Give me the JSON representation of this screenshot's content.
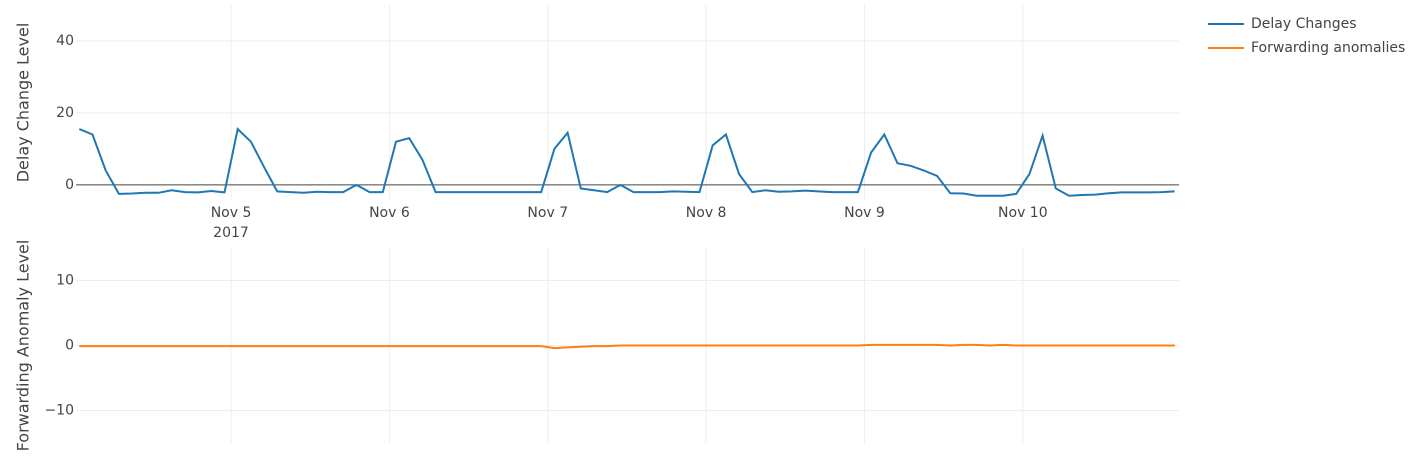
{
  "chart_data": {
    "type": "line",
    "x": [
      "2017-11-04T01:00",
      "2017-11-04T03:00",
      "2017-11-04T05:00",
      "2017-11-04T07:00",
      "2017-11-04T09:00",
      "2017-11-04T11:00",
      "2017-11-04T13:00",
      "2017-11-04T15:00",
      "2017-11-04T17:00",
      "2017-11-04T19:00",
      "2017-11-04T21:00",
      "2017-11-04T23:00",
      "2017-11-05T01:00",
      "2017-11-05T03:00",
      "2017-11-05T05:00",
      "2017-11-05T07:00",
      "2017-11-05T09:00",
      "2017-11-05T11:00",
      "2017-11-05T13:00",
      "2017-11-05T15:00",
      "2017-11-05T17:00",
      "2017-11-05T19:00",
      "2017-11-05T21:00",
      "2017-11-05T23:00",
      "2017-11-06T01:00",
      "2017-11-06T03:00",
      "2017-11-06T05:00",
      "2017-11-06T07:00",
      "2017-11-06T09:00",
      "2017-11-06T11:00",
      "2017-11-06T13:00",
      "2017-11-06T15:00",
      "2017-11-06T17:00",
      "2017-11-06T19:00",
      "2017-11-06T21:00",
      "2017-11-06T23:00",
      "2017-11-07T01:00",
      "2017-11-07T03:00",
      "2017-11-07T05:00",
      "2017-11-07T07:00",
      "2017-11-07T09:00",
      "2017-11-07T11:00",
      "2017-11-07T13:00",
      "2017-11-07T15:00",
      "2017-11-07T17:00",
      "2017-11-07T19:00",
      "2017-11-07T21:00",
      "2017-11-07T23:00",
      "2017-11-08T01:00",
      "2017-11-08T03:00",
      "2017-11-08T05:00",
      "2017-11-08T07:00",
      "2017-11-08T09:00",
      "2017-11-08T11:00",
      "2017-11-08T13:00",
      "2017-11-08T15:00",
      "2017-11-08T17:00",
      "2017-11-08T19:00",
      "2017-11-08T21:00",
      "2017-11-08T23:00",
      "2017-11-09T01:00",
      "2017-11-09T03:00",
      "2017-11-09T05:00",
      "2017-11-09T07:00",
      "2017-11-09T09:00",
      "2017-11-09T11:00",
      "2017-11-09T13:00",
      "2017-11-09T15:00",
      "2017-11-09T17:00",
      "2017-11-09T19:00",
      "2017-11-09T21:00",
      "2017-11-09T23:00",
      "2017-11-10T01:00",
      "2017-11-10T03:00",
      "2017-11-10T05:00",
      "2017-11-10T07:00",
      "2017-11-10T09:00",
      "2017-11-10T11:00",
      "2017-11-10T13:00",
      "2017-11-10T15:00",
      "2017-11-10T17:00",
      "2017-11-10T19:00",
      "2017-11-10T21:00",
      "2017-11-10T23:00"
    ],
    "xlim": [
      "2017-11-04T00:30",
      "2017-11-10T23:40"
    ],
    "xticks": [
      {
        "value": "2017-11-05",
        "label": "Nov 5"
      },
      {
        "value": "2017-11-06",
        "label": "Nov 6"
      },
      {
        "value": "2017-11-07",
        "label": "Nov 7"
      },
      {
        "value": "2017-11-08",
        "label": "Nov 8"
      },
      {
        "value": "2017-11-09",
        "label": "Nov 9"
      },
      {
        "value": "2017-11-10",
        "label": "Nov 10"
      }
    ],
    "xyear": "2017",
    "grid": true,
    "legend": "top-right",
    "panels": [
      {
        "ylabel": "Delay Change Level",
        "ylim": [
          -4.2,
          50
        ],
        "yticks": [
          0,
          20,
          40
        ],
        "zeroline": true,
        "series": [
          {
            "name": "Delay Changes",
            "color": "#1f77b4",
            "values": [
              15.5,
              14,
              4,
              -2.5,
              -2.4,
              -2.2,
              -2.2,
              -1.5,
              -2,
              -2.1,
              -1.7,
              -2.1,
              15.5,
              12,
              5,
              -1.8,
              -2,
              -2.2,
              -1.9,
              -2,
              -2,
              0,
              -2,
              -2,
              12,
              13,
              7,
              -2,
              -2,
              -2,
              -2,
              -2,
              -2,
              -2,
              -2,
              -2,
              10,
              14.5,
              -1,
              -1.5,
              -2,
              0,
              -2,
              -2,
              -2,
              -1.8,
              -1.9,
              -2,
              11,
              14,
              3,
              -2,
              -1.5,
              -1.9,
              -1.8,
              -1.6,
              -1.8,
              -2,
              -2,
              -2,
              9,
              14,
              6,
              5.3,
              4,
              2.5,
              -2.3,
              -2.4,
              -3,
              -3,
              -3,
              -2.5,
              3,
              13.7,
              -1,
              -3,
              -2.8,
              -2.7,
              -2.3,
              -2.1,
              -2.1,
              -2.1,
              -2,
              -1.8
            ]
          }
        ]
      },
      {
        "ylabel": "Forwarding Anomaly Level",
        "ylim": [
          -15,
          15
        ],
        "yticks": [
          {
            "value": -10,
            "label": "−10"
          },
          0,
          10
        ],
        "zeroline": false,
        "series": [
          {
            "name": "Forwarding anomalies",
            "color": "#ff7f0e",
            "values": [
              -0.1,
              -0.1,
              -0.1,
              -0.1,
              -0.1,
              -0.1,
              -0.1,
              -0.1,
              -0.1,
              -0.1,
              -0.1,
              -0.1,
              -0.1,
              -0.1,
              -0.1,
              -0.1,
              -0.1,
              -0.1,
              -0.1,
              -0.1,
              -0.1,
              -0.1,
              -0.1,
              -0.1,
              -0.1,
              -0.1,
              -0.1,
              -0.1,
              -0.1,
              -0.1,
              -0.1,
              -0.1,
              -0.1,
              -0.1,
              -0.1,
              -0.1,
              -0.4,
              -0.3,
              -0.2,
              -0.1,
              -0.1,
              0,
              0,
              0,
              0,
              0,
              0,
              0,
              0,
              0,
              0,
              0,
              0,
              0,
              0,
              0,
              0,
              0,
              0,
              0,
              0.1,
              0.1,
              0.1,
              0.1,
              0.1,
              0.1,
              0,
              0.1,
              0.1,
              0,
              0.1,
              0,
              0,
              0,
              0,
              0,
              0,
              0,
              0,
              0,
              0,
              0,
              0,
              0
            ]
          }
        ]
      }
    ]
  }
}
